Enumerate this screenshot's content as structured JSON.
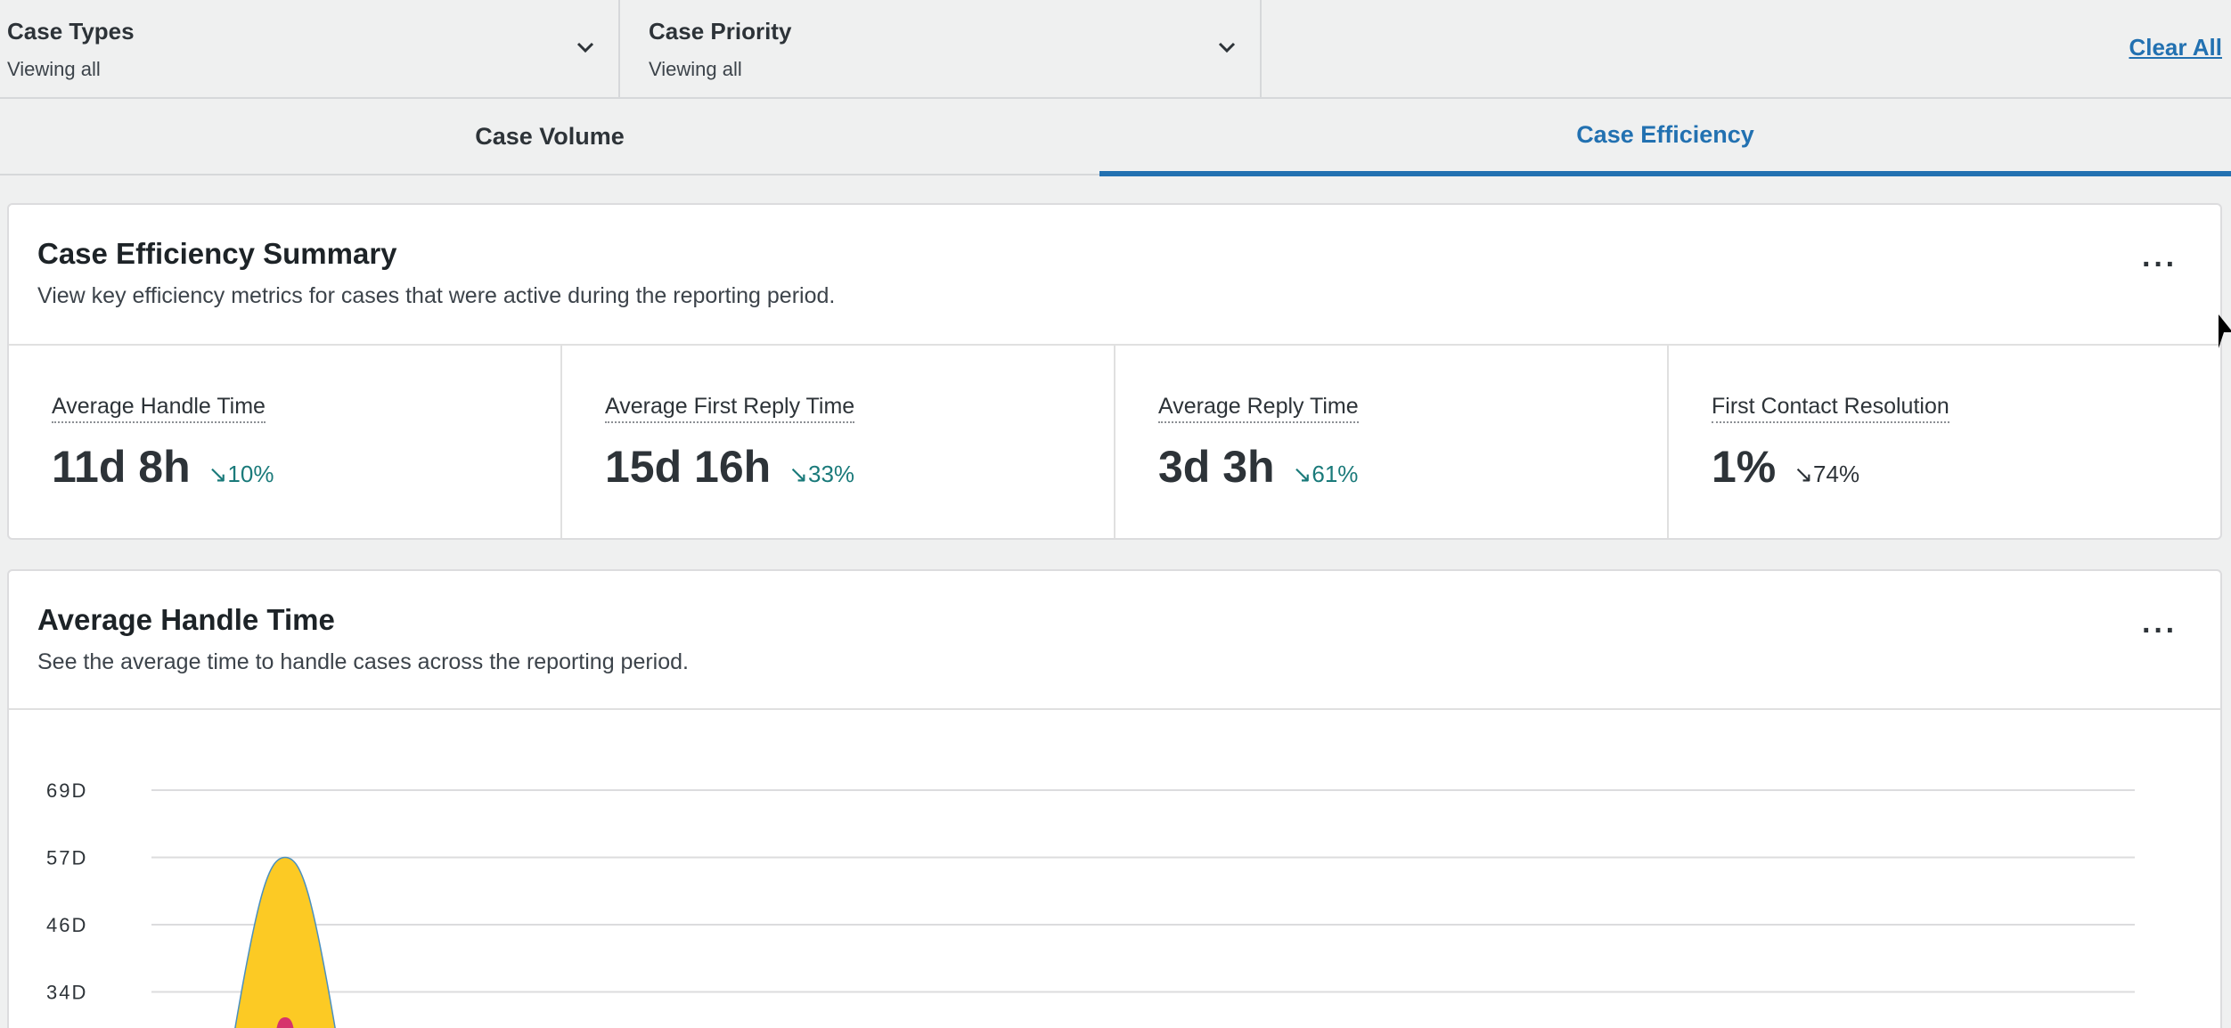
{
  "filters": [
    {
      "title": "Case Types",
      "value": "Viewing all"
    },
    {
      "title": "Case Priority",
      "value": "Viewing all"
    }
  ],
  "clear_all_label": "Clear All",
  "tabs": [
    {
      "label": "Case Volume",
      "active": false
    },
    {
      "label": "Case Efficiency",
      "active": true
    }
  ],
  "summary": {
    "title": "Case Efficiency Summary",
    "subtitle": "View key efficiency metrics for cases that were active during the reporting period.",
    "more_label": "···",
    "metrics": [
      {
        "label": "Average Handle Time",
        "value": "11d 8h",
        "delta": "↘10%",
        "delta_color": "#1a7a7a"
      },
      {
        "label": "Average First Reply Time",
        "value": "15d 16h",
        "delta": "↘33%",
        "delta_color": "#1a7a7a"
      },
      {
        "label": "Average Reply Time",
        "value": "3d 3h",
        "delta": "↘61%",
        "delta_color": "#1a7a7a"
      },
      {
        "label": "First Contact Resolution",
        "value": "1%",
        "delta": "↘74%",
        "delta_color": "#2d3338"
      }
    ]
  },
  "handle_card": {
    "title": "Average Handle Time",
    "subtitle": "See the average time to handle cases across the reporting period.",
    "more_label": "···"
  },
  "chart_data": {
    "type": "area",
    "title": "Average Handle Time",
    "y_ticks": [
      "69D",
      "57D",
      "46D",
      "34D"
    ],
    "ylim": [
      0,
      69
    ],
    "series": [
      {
        "color": "#fcca24",
        "peak": 57
      },
      {
        "color": "#d6336c"
      }
    ],
    "grid": true
  },
  "colors": {
    "accent": "#2271b1",
    "positive_delta": "#1a7a7a",
    "area_fill": "#fcca24",
    "area_marker": "#d6336c"
  }
}
